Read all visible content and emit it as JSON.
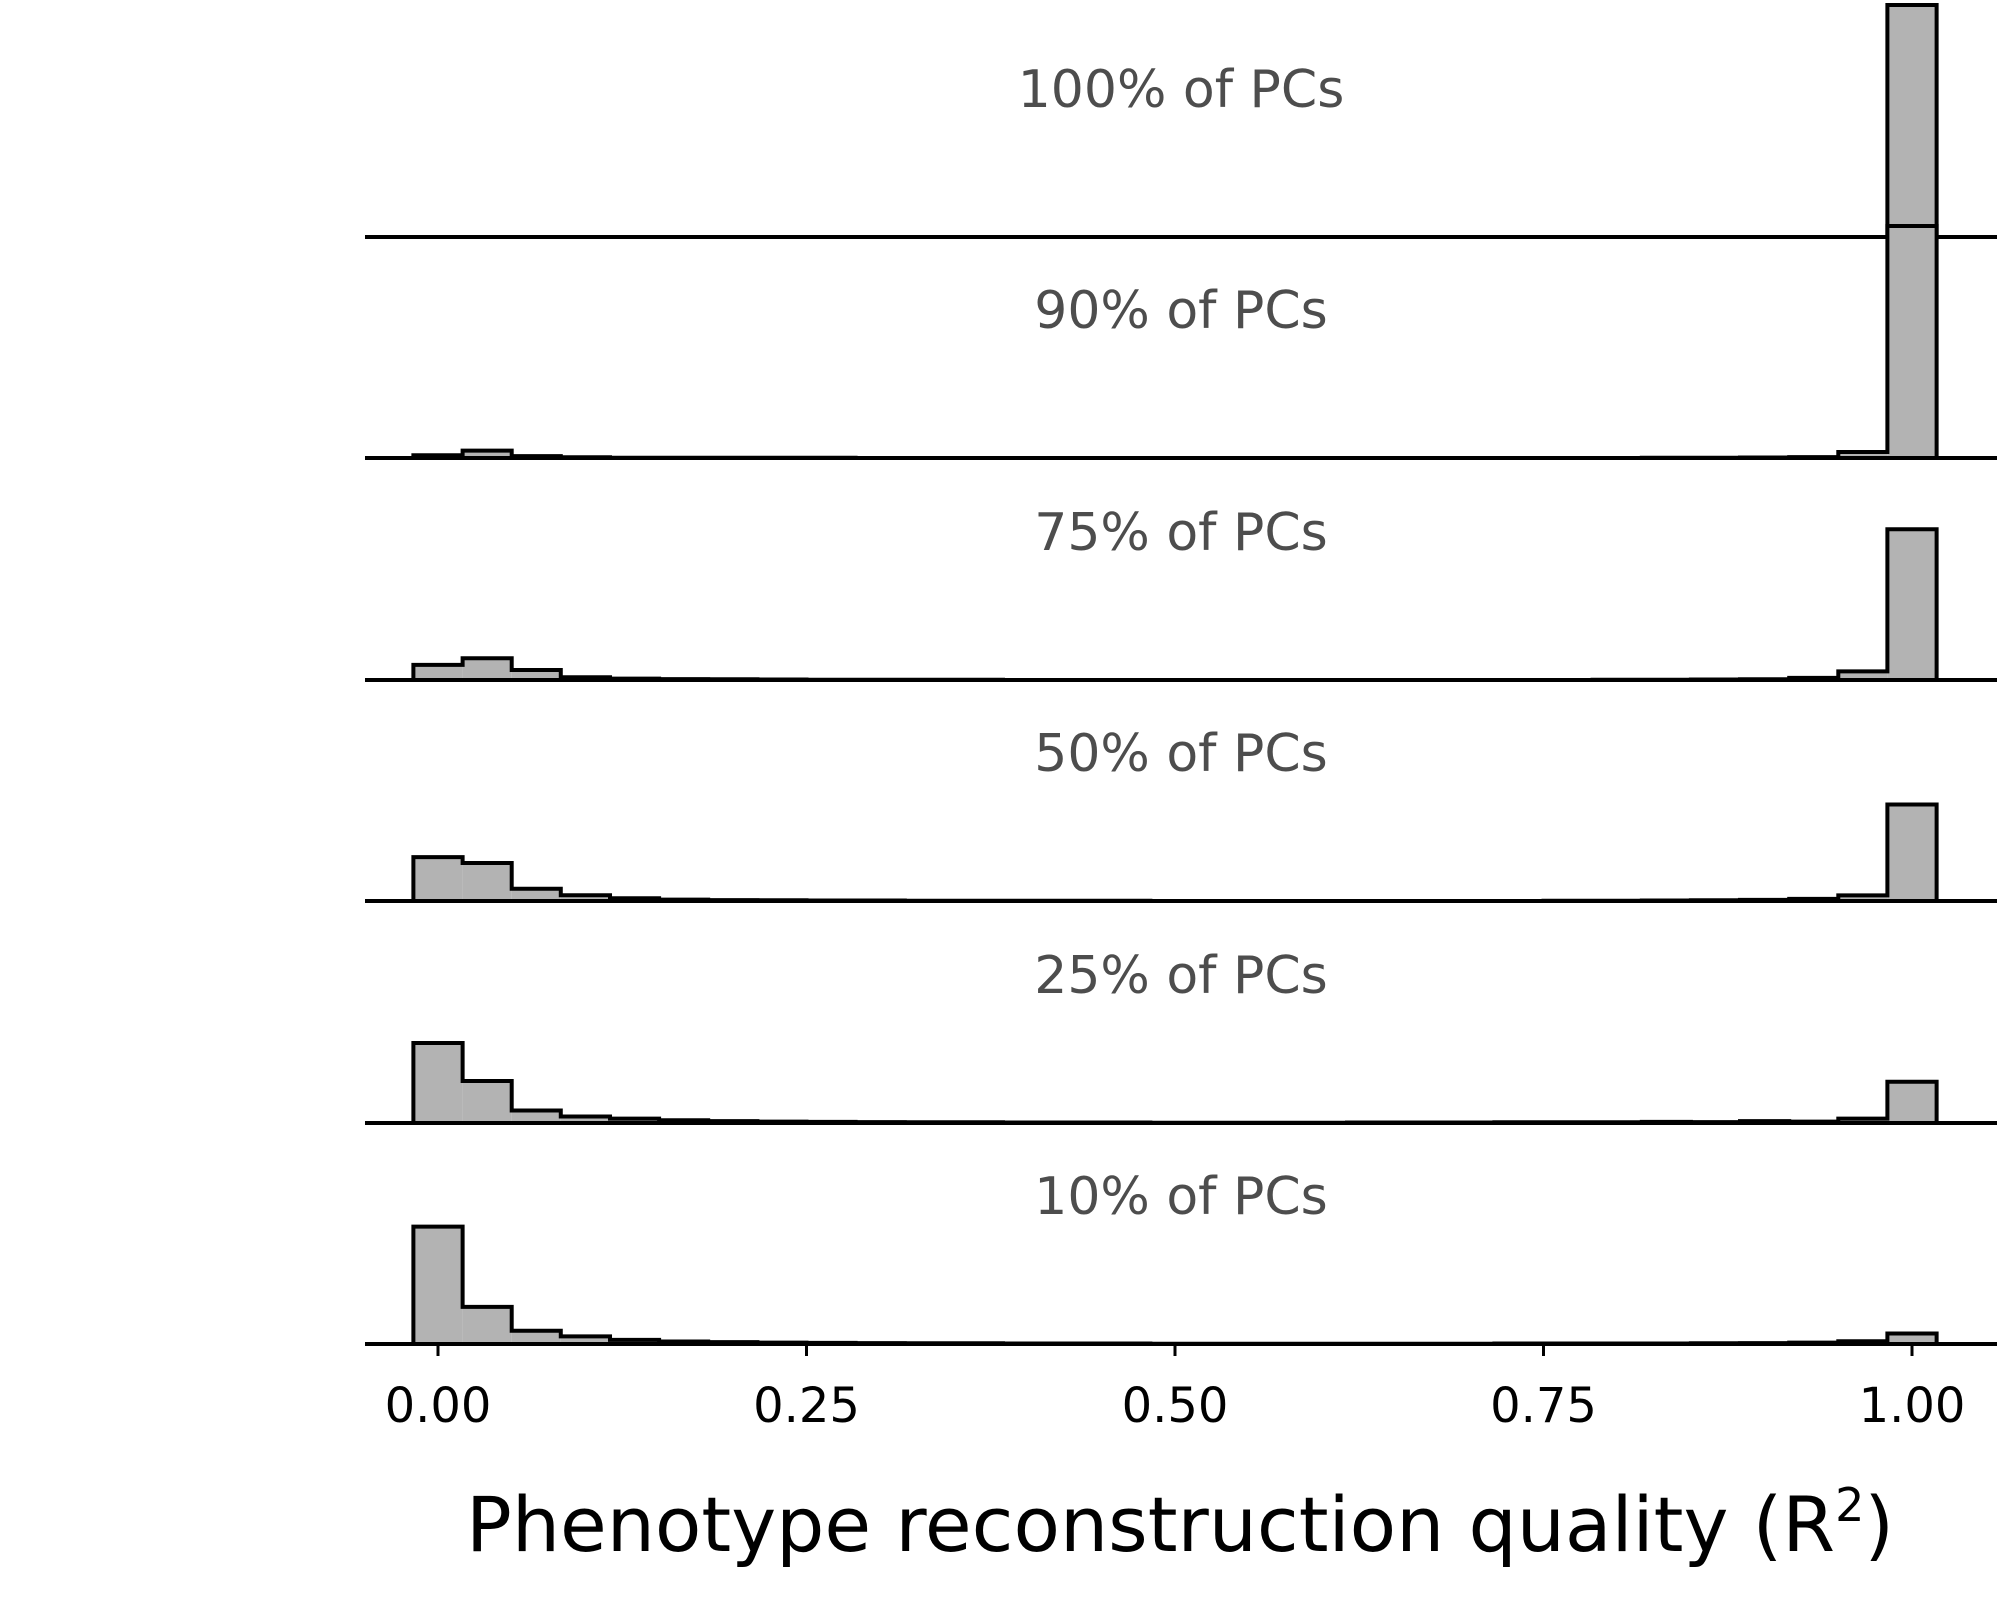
{
  "chart_data": {
    "type": "histogram-ridgeline",
    "xlabel": "Phenotype reconstruction quality",
    "xlabel_sup": "2",
    "xlabel_var": "R",
    "xlim": [
      -0.05,
      1.05
    ],
    "x_ticks": [
      0.0,
      0.25,
      0.5,
      0.75,
      1.0
    ],
    "x_tick_labels": [
      "0.00",
      "0.25",
      "0.50",
      "0.75",
      "1.00"
    ],
    "bins": [
      -0.0167,
      0.0167,
      0.05,
      0.0833,
      0.1167,
      0.15,
      0.1833,
      0.2167,
      0.25,
      0.2833,
      0.3167,
      0.35,
      0.3833,
      0.4167,
      0.45,
      0.4833,
      0.5167,
      0.55,
      0.5833,
      0.6167,
      0.65,
      0.6833,
      0.7167,
      0.75,
      0.7833,
      0.8167,
      0.85,
      0.8833,
      0.9167,
      0.95,
      0.9833,
      1.0167
    ],
    "series": [
      {
        "name": "100% of PCs",
        "values": [
          0,
          0,
          0,
          0,
          0,
          0,
          0,
          0,
          0,
          0,
          0,
          0,
          0,
          0,
          0,
          0,
          0,
          0,
          0,
          0,
          0,
          0,
          0,
          0,
          0,
          0,
          0,
          0,
          0,
          0,
          1.0
        ]
      },
      {
        "name": "90% of PCs",
        "values": [
          0.012,
          0.032,
          0.008,
          0.003,
          0.001,
          0.001,
          0.001,
          0.001,
          0.001,
          0.0,
          0.0,
          0.0,
          0.0,
          0.0,
          0.0,
          0.0,
          0.0,
          0.0,
          0.0,
          0.0,
          0.0,
          0.0,
          0.0,
          0.0,
          0.0,
          0.001,
          0.001,
          0.002,
          0.004,
          0.026,
          1.0
        ]
      },
      {
        "name": "75% of PCs",
        "values": [
          0.065,
          0.094,
          0.043,
          0.012,
          0.006,
          0.004,
          0.003,
          0.002,
          0.001,
          0.001,
          0.001,
          0.001,
          0.0,
          0.0,
          0.0,
          0.0,
          0.0,
          0.0,
          0.0,
          0.0,
          0.0,
          0.0,
          0.0,
          0.0,
          0.001,
          0.001,
          0.002,
          0.003,
          0.009,
          0.037,
          0.65
        ]
      },
      {
        "name": "50% of PCs",
        "values": [
          0.189,
          0.164,
          0.053,
          0.025,
          0.012,
          0.006,
          0.004,
          0.003,
          0.002,
          0.002,
          0.001,
          0.001,
          0.001,
          0.001,
          0.001,
          0.0,
          0.0,
          0.0,
          0.0,
          0.0,
          0.0,
          0.0,
          0.0,
          0.001,
          0.001,
          0.002,
          0.003,
          0.005,
          0.009,
          0.024,
          0.416
        ]
      },
      {
        "name": "25% of PCs",
        "values": [
          0.345,
          0.181,
          0.054,
          0.028,
          0.019,
          0.012,
          0.008,
          0.006,
          0.005,
          0.004,
          0.003,
          0.003,
          0.002,
          0.002,
          0.002,
          0.001,
          0.001,
          0.001,
          0.001,
          0.002,
          0.002,
          0.002,
          0.003,
          0.003,
          0.003,
          0.005,
          0.004,
          0.008,
          0.006,
          0.019,
          0.178
        ]
      },
      {
        "name": "10% of PCs",
        "values": [
          0.506,
          0.16,
          0.057,
          0.033,
          0.018,
          0.011,
          0.008,
          0.006,
          0.005,
          0.004,
          0.003,
          0.003,
          0.002,
          0.002,
          0.002,
          0.001,
          0.001,
          0.001,
          0.001,
          0.001,
          0.001,
          0.001,
          0.002,
          0.002,
          0.002,
          0.002,
          0.003,
          0.004,
          0.006,
          0.012,
          0.045
        ]
      }
    ]
  }
}
